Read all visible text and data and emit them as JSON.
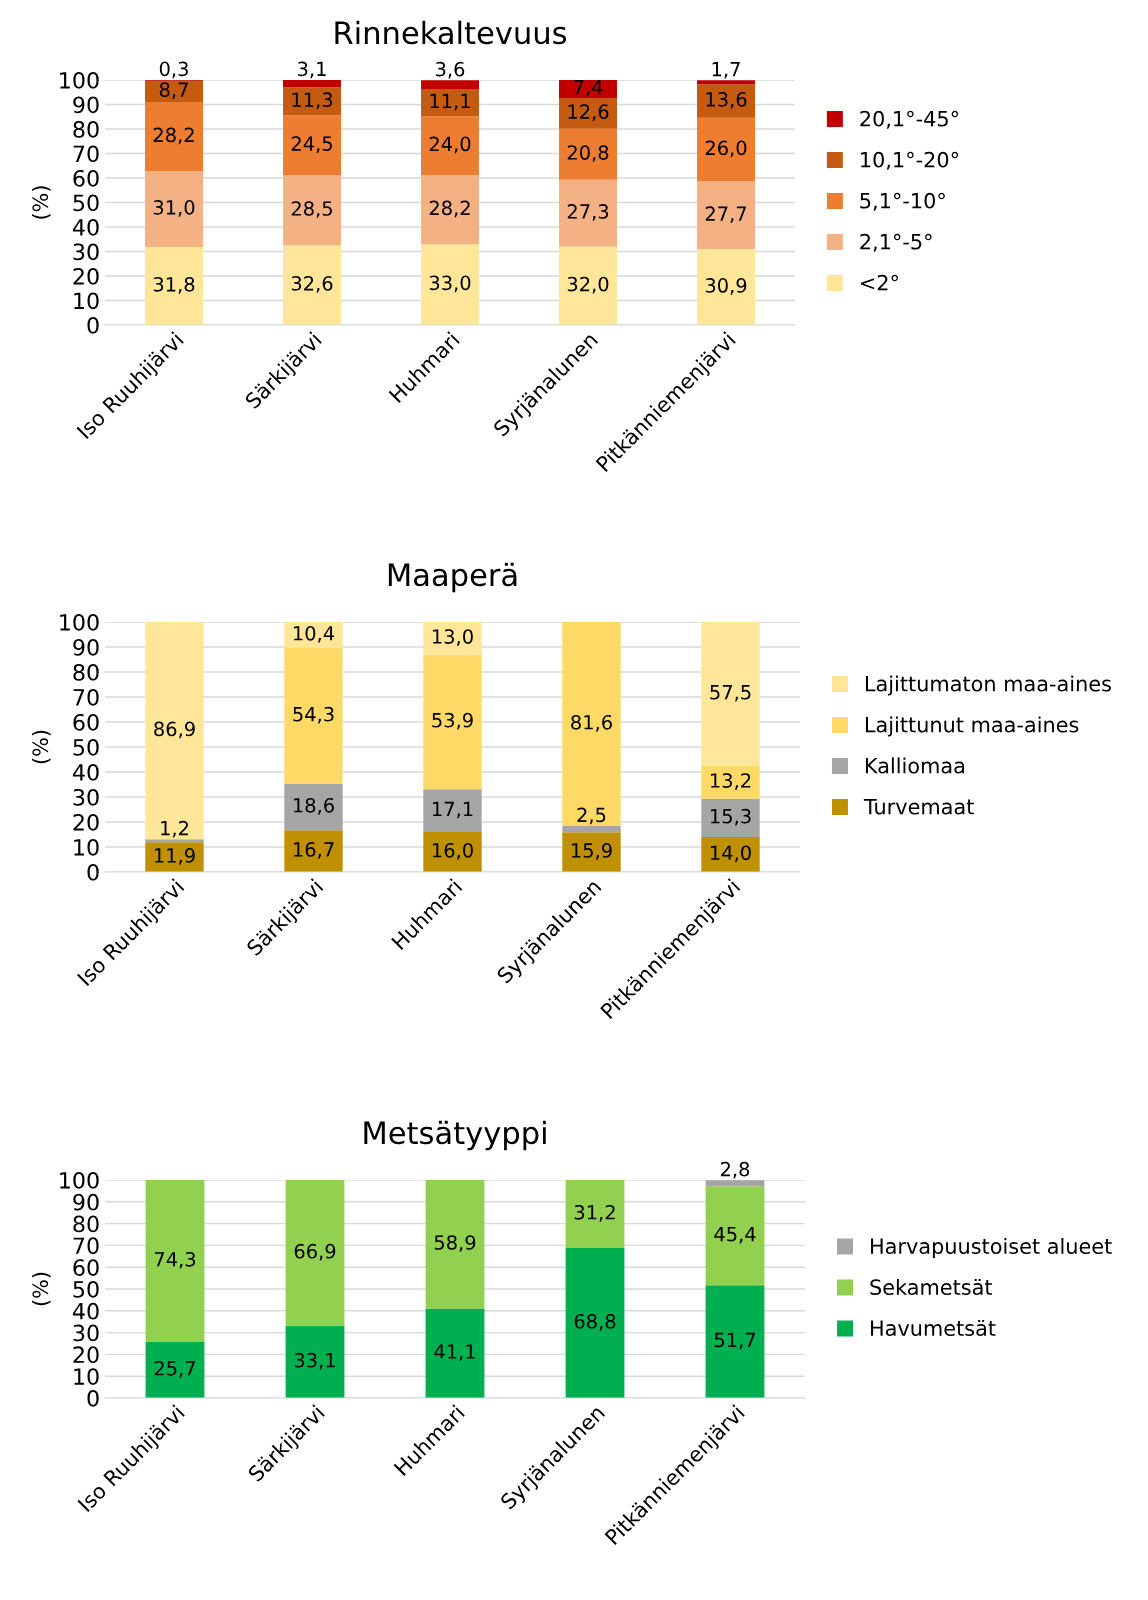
{
  "chart_data": [
    {
      "type": "bar",
      "stacked": true,
      "title": "Rinnekaltevuus",
      "ylabel": "(%)",
      "categories": [
        "Iso Ruuhijärvi",
        "Särkijärvi",
        "Huhmari",
        "Syrjänalunen",
        "Pitkänniemenjärvi"
      ],
      "ylim": [
        0,
        100
      ],
      "yticks": [
        0,
        10,
        20,
        30,
        40,
        50,
        60,
        70,
        80,
        90,
        100
      ],
      "grid": "y",
      "legend": "right",
      "series": [
        {
          "name": "<2°",
          "color": "#ffe699",
          "values": [
            31.8,
            32.6,
            33.0,
            32.0,
            30.9
          ],
          "value_labels": [
            "31,8",
            "32,6",
            "33,0",
            "32,0",
            "30,9"
          ]
        },
        {
          "name": "2,1°-5°",
          "color": "#f4b183",
          "values": [
            31.0,
            28.5,
            28.2,
            27.3,
            27.7
          ],
          "value_labels": [
            "31,0",
            "28,5",
            "28,2",
            "27,3",
            "27,7"
          ]
        },
        {
          "name": "5,1°-10°",
          "color": "#ed7d31",
          "values": [
            28.2,
            24.5,
            24.0,
            20.8,
            26.0
          ],
          "value_labels": [
            "28,2",
            "24,5",
            "24,0",
            "20,8",
            "26,0"
          ]
        },
        {
          "name": "10,1°-20°",
          "color": "#c55a11",
          "values": [
            8.7,
            11.3,
            11.1,
            12.6,
            13.6
          ],
          "value_labels": [
            "8,7",
            "11,3",
            "11,1",
            "12,6",
            "13,6"
          ]
        },
        {
          "name": "20,1°-45°",
          "color": "#c00000",
          "values": [
            0.3,
            3.1,
            3.6,
            7.4,
            1.7
          ],
          "value_labels": [
            "0,3",
            "3,1",
            "3,6",
            "7,4",
            "1,7"
          ]
        }
      ]
    },
    {
      "type": "bar",
      "stacked": true,
      "title": "Maaperä",
      "ylabel": "(%)",
      "categories": [
        "Iso Ruuhijärvi",
        "Särkijärvi",
        "Huhmari",
        "Syrjänalunen",
        "Pitkänniemenjärvi"
      ],
      "ylim": [
        0,
        100
      ],
      "yticks": [
        0,
        10,
        20,
        30,
        40,
        50,
        60,
        70,
        80,
        90,
        100
      ],
      "grid": "y",
      "legend": "right",
      "series": [
        {
          "name": "Turvemaat",
          "color": "#bf9000",
          "values": [
            11.9,
            16.7,
            16.0,
            15.9,
            14.0
          ],
          "value_labels": [
            "11,9",
            "16,7",
            "16,0",
            "15,9",
            "14,0"
          ]
        },
        {
          "name": "Kalliomaa",
          "color": "#a5a5a5",
          "values": [
            1.2,
            18.6,
            17.1,
            2.5,
            15.3
          ],
          "value_labels": [
            "1,2",
            "18,6",
            "17,1",
            "2,5",
            "15,3"
          ]
        },
        {
          "name": "Lajittunut maa-aines",
          "color": "#ffd966",
          "values": [
            null,
            54.3,
            53.9,
            81.6,
            13.2
          ],
          "value_labels": [
            null,
            "54,3",
            "53,9",
            "81,6",
            "13,2"
          ]
        },
        {
          "name": "Lajittumaton maa-aines",
          "color": "#ffe699",
          "values": [
            86.9,
            10.4,
            13.0,
            null,
            57.5
          ],
          "value_labels": [
            "86,9",
            "10,4",
            "13,0",
            null,
            "57,5"
          ]
        }
      ]
    },
    {
      "type": "bar",
      "stacked": true,
      "title": "Metsätyyppi",
      "ylabel": "(%)",
      "categories": [
        "Iso Ruuhijärvi",
        "Särkijärvi",
        "Huhmari",
        "Syrjänalunen",
        "Pitkänniemenjärvi"
      ],
      "ylim": [
        0,
        100
      ],
      "yticks": [
        0,
        10,
        20,
        30,
        40,
        50,
        60,
        70,
        80,
        90,
        100
      ],
      "grid": "y",
      "legend": "right",
      "series": [
        {
          "name": "Havumetsät",
          "color": "#00b050",
          "values": [
            25.7,
            33.1,
            41.1,
            68.8,
            51.7
          ],
          "value_labels": [
            "25,7",
            "33,1",
            "41,1",
            "68,8",
            "51,7"
          ]
        },
        {
          "name": "Sekametsät",
          "color": "#92d050",
          "values": [
            74.3,
            66.9,
            58.9,
            31.2,
            45.4
          ],
          "value_labels": [
            "74,3",
            "66,9",
            "58,9",
            "31,2",
            "45,4"
          ]
        },
        {
          "name": "Harvapuustoiset alueet",
          "color": "#a5a5a5",
          "values": [
            null,
            null,
            null,
            null,
            2.8
          ],
          "value_labels": [
            null,
            null,
            null,
            null,
            "2,8"
          ]
        }
      ]
    }
  ]
}
